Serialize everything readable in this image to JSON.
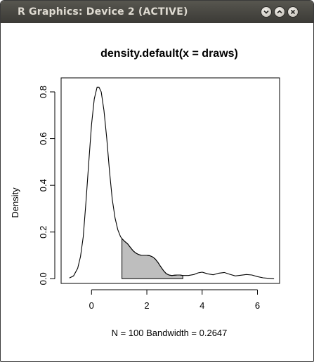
{
  "window": {
    "title": "R Graphics: Device 2 (ACTIVE)",
    "buttons": [
      "minimize-icon",
      "maximize-icon",
      "close-icon"
    ]
  },
  "chart_data": {
    "type": "line",
    "title": "density.default(x = draws)",
    "xlabel": "N = 100   Bandwidth = 0.2647",
    "ylabel": "Density",
    "xlim": [
      -1.1,
      6.8
    ],
    "ylim": [
      -0.02,
      0.86
    ],
    "xticks": [
      0,
      2,
      4,
      6
    ],
    "xtick_labels": [
      "0",
      "2",
      "4",
      "6"
    ],
    "yticks": [
      0,
      0.2,
      0.4,
      0.6,
      0.8
    ],
    "ytick_labels": [
      "0.0",
      "0.2",
      "0.4",
      "0.6",
      "0.8"
    ],
    "grid": false,
    "legend": "none",
    "series": [
      {
        "x": [
          -0.8,
          -0.65,
          -0.5,
          -0.4,
          -0.3,
          -0.2,
          -0.1,
          0.0,
          0.1,
          0.2,
          0.27,
          0.35,
          0.45,
          0.55,
          0.65,
          0.75,
          0.85,
          0.95,
          1.05,
          1.1,
          1.2,
          1.3,
          1.4,
          1.5,
          1.6,
          1.7,
          1.8,
          1.9,
          2.0,
          2.1,
          2.2,
          2.3,
          2.4,
          2.5,
          2.6,
          2.7,
          2.8,
          2.9,
          3.0,
          3.1,
          3.2,
          3.3,
          3.5,
          3.7,
          3.85,
          4.0,
          4.2,
          4.4,
          4.6,
          4.8,
          5.0,
          5.2,
          5.4,
          5.6,
          5.8,
          6.0,
          6.2,
          6.4,
          6.6
        ],
        "y": [
          0.003,
          0.012,
          0.045,
          0.095,
          0.18,
          0.33,
          0.5,
          0.66,
          0.77,
          0.82,
          0.82,
          0.8,
          0.72,
          0.6,
          0.46,
          0.34,
          0.26,
          0.21,
          0.18,
          0.172,
          0.16,
          0.15,
          0.135,
          0.12,
          0.11,
          0.104,
          0.1,
          0.1,
          0.1,
          0.099,
          0.094,
          0.085,
          0.07,
          0.052,
          0.035,
          0.022,
          0.016,
          0.014,
          0.015,
          0.016,
          0.016,
          0.014,
          0.014,
          0.018,
          0.025,
          0.028,
          0.021,
          0.017,
          0.024,
          0.027,
          0.019,
          0.012,
          0.015,
          0.018,
          0.016,
          0.009,
          0.004,
          0.002,
          0.0
        ]
      }
    ],
    "shaded_region": {
      "x_from": 1.1,
      "x_to": 3.3,
      "fill": "#bebebe"
    },
    "colors": {
      "line": "#000000",
      "shade": "#bebebe",
      "titlebar": "#4b4a45"
    }
  }
}
